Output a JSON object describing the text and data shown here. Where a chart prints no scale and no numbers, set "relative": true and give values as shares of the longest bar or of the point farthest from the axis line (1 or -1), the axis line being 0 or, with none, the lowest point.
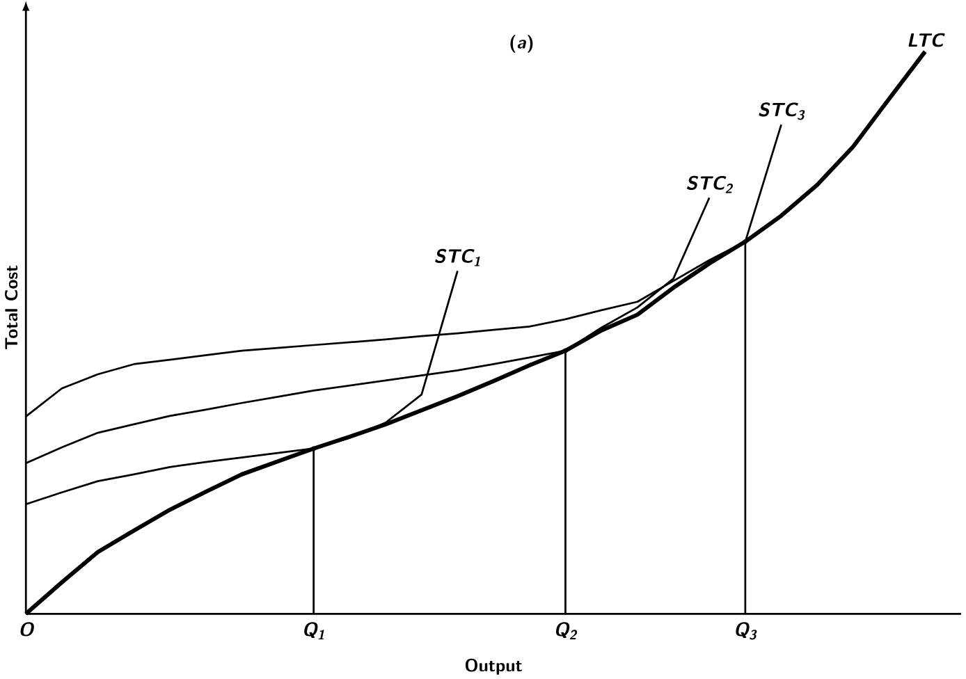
{
  "chart_data": {
    "type": "line",
    "relative": true,
    "xlabel": "Output",
    "ylabel": "Total Cost",
    "annotations": [
      "(*a*)"
    ],
    "categories": [
      "O",
      null,
      null,
      null,
      null,
      null,
      null,
      null,
      "Q$_{1}$",
      null,
      null,
      null,
      null,
      null,
      null,
      "Q$_{2}$",
      null,
      null,
      null,
      null,
      "Q$_{3}$",
      null,
      null,
      null,
      null,
      null,
      null
    ],
    "marker": "none",
    "series": [
      {
        "name": "LTC",
        "color": "#000000",
        "values": [
          0,
          0.056,
          0.11,
          0.148,
          0.185,
          0.217,
          0.248,
          0.271,
          0.294,
          0.315,
          0.337,
          0.362,
          0.387,
          0.414,
          0.442,
          0.468,
          0.504,
          0.532,
          0.58,
          0.623,
          0.662,
          0.708,
          0.763,
          0.831,
          0.916,
          1,
          null
        ]
      },
      {
        "name": "STC$_{1}$",
        "color": "#000000",
        "values": [
          0.195,
          0.216,
          0.236,
          0.248,
          0.261,
          0.27,
          0.278,
          0.286,
          0.294,
          0.313,
          0.34,
          0.39,
          0.61,
          null,
          null,
          null,
          null,
          null,
          null,
          null,
          null,
          null,
          null,
          null,
          null,
          null,
          null
        ]
      },
      {
        "name": "STC$_{2}$",
        "color": "#000000",
        "values": [
          0.268,
          0.296,
          0.322,
          0.337,
          0.352,
          0.363,
          0.375,
          0.386,
          0.397,
          0.406,
          0.415,
          0.424,
          0.433,
          0.444,
          0.456,
          0.468,
          0.509,
          0.545,
          0.596,
          0.74,
          null,
          null,
          null,
          null,
          null,
          null,
          null
        ]
      },
      {
        "name": "STC$_{3}$",
        "color": "#000000",
        "values": [
          0.351,
          0.401,
          0.426,
          0.444,
          0.452,
          0.46,
          0.468,
          0.473,
          0.478,
          0.483,
          0.488,
          0.494,
          0.499,
          0.505,
          0.511,
          0.524,
          0.54,
          0.555,
          0.592,
          0.629,
          0.662,
          0.87,
          null,
          null,
          null,
          null,
          null
        ]
      },
      {
        "type": "lollipop",
        "color": "#000000",
        "values": [
          null,
          null,
          null,
          null,
          null,
          null,
          null,
          null,
          0.294,
          null,
          null,
          null,
          null,
          null,
          null,
          0.468,
          null,
          null,
          null,
          null,
          0.662,
          null,
          null,
          null,
          null,
          null,
          null
        ]
      }
    ]
  }
}
